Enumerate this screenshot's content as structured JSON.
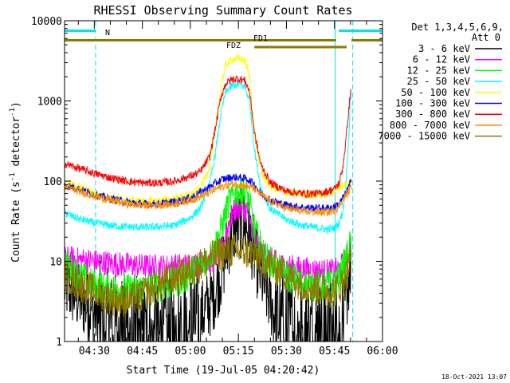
{
  "chart_data": {
    "type": "line",
    "title": "RHESSI Observing Summary Count Rates",
    "xlabel": "Start Time (19-Jul-05 04:20:42)",
    "ylabel_main": "Count Rate (s",
    "ylabel_exp1": "-1",
    "ylabel_mid": " detector",
    "ylabel_exp2": "-1",
    "ylabel_end": ")",
    "y_scale": "log",
    "ylim": [
      1,
      10000
    ],
    "xlim_minutes": [
      260.7,
      360.0
    ],
    "x_ticks": [
      {
        "label": "04:30",
        "minutes": 270
      },
      {
        "label": "04:45",
        "minutes": 285
      },
      {
        "label": "05:00",
        "minutes": 300
      },
      {
        "label": "05:15",
        "minutes": 315
      },
      {
        "label": "05:30",
        "minutes": 330
      },
      {
        "label": "05:45",
        "minutes": 345
      },
      {
        "label": "06:00",
        "minutes": 360
      }
    ],
    "y_ticks": [
      {
        "label": "1",
        "value": 1
      },
      {
        "label": "10",
        "value": 10
      },
      {
        "label": "100",
        "value": 100
      },
      {
        "label": "1000",
        "value": 1000
      },
      {
        "label": "10000",
        "value": 10000
      }
    ],
    "legend_header": [
      "Det 1,3,4,5,6,9,",
      "Att 0"
    ],
    "legend_placement": "right",
    "timestamp": "18-Oct-2021 13:07",
    "flags": [
      {
        "label": "N",
        "color": "#00e5e5",
        "segments": [
          [
            260.7,
            270.4
          ],
          [
            346.3,
            360.0
          ]
        ],
        "level": 7500
      },
      {
        "label": "FD1",
        "color": "#8c7a00",
        "segments": [
          [
            260.7,
            345.5
          ],
          [
            350.3,
            360.0
          ]
        ],
        "level": 5700
      },
      {
        "label": "FDZ",
        "color": "#8c7a00",
        "segments": [
          [
            320.0,
            348.8
          ]
        ],
        "level": 4700
      }
    ],
    "night_lines": [
      {
        "minutes": 260.7,
        "style": "solid",
        "color": "#00e5e5"
      },
      {
        "minutes": 270.4,
        "style": "dashed",
        "color": "#00e5e5"
      },
      {
        "minutes": 345.2,
        "style": "solid",
        "color": "#00e5e5"
      },
      {
        "minutes": 350.7,
        "style": "dashed",
        "color": "#00e5e5"
      }
    ],
    "series": [
      {
        "name": "3 - 6 keV",
        "color": "#000000",
        "x": [
          260.7,
          263,
          266,
          270,
          275,
          282,
          290,
          298,
          303,
          307,
          310,
          312,
          314,
          316,
          318,
          320,
          323,
          327,
          333,
          340,
          344,
          346,
          347.5,
          348.5,
          349.5,
          350.2
        ],
        "y": [
          5,
          4.2,
          3.2,
          2.3,
          1.5,
          1.3,
          1.2,
          1.3,
          2,
          3.5,
          8,
          18,
          27,
          30,
          26,
          12,
          5,
          2,
          1.3,
          1.3,
          1.2,
          1.1,
          1.5,
          3,
          6,
          10
        ]
      },
      {
        "name": "6 - 12 keV",
        "color": "#ff00ff",
        "x": [
          260.7,
          265,
          270,
          280,
          290,
          300,
          307,
          310,
          312,
          314,
          316,
          318,
          320,
          323,
          328,
          335,
          342,
          345,
          346.3,
          347.5,
          349,
          350.2
        ],
        "y": [
          11,
          10.5,
          10,
          9,
          8.5,
          9,
          10,
          15,
          30,
          45,
          47,
          42,
          20,
          12,
          9,
          8,
          7.5,
          7.5,
          8,
          9,
          12,
          16
        ]
      },
      {
        "name": "12 - 25 keV",
        "color": "#00ff00",
        "x": [
          260.7,
          263,
          266,
          270,
          275,
          280,
          286,
          292,
          298,
          303,
          307,
          310,
          312,
          314,
          316,
          318,
          320,
          323,
          327,
          332,
          337,
          342,
          345,
          346.3,
          347.5,
          349,
          350.2
        ],
        "y": [
          9.5,
          8,
          6.5,
          5,
          4.5,
          4.5,
          4.6,
          5,
          6,
          9,
          13,
          28,
          55,
          72,
          75,
          65,
          25,
          12,
          8,
          6,
          5,
          5,
          5.5,
          6,
          8,
          12,
          18
        ]
      },
      {
        "name": "25 - 50 keV",
        "color": "#00ffff",
        "x": [
          260.7,
          265,
          270,
          275,
          280,
          285,
          290,
          295,
          300,
          303,
          306,
          308,
          309.5,
          311,
          313,
          315,
          317,
          318.5,
          320,
          322,
          325,
          330,
          335,
          340,
          343,
          345,
          346.5,
          347.5,
          348.5,
          349.5,
          350.2
        ],
        "y": [
          40,
          34,
          30,
          28,
          27,
          26.5,
          27,
          28,
          35,
          45,
          90,
          250,
          700,
          1300,
          1550,
          1600,
          1500,
          1000,
          250,
          80,
          45,
          33,
          28,
          26,
          25,
          26,
          30,
          40,
          80,
          400,
          1400
        ]
      },
      {
        "name": "50 - 100 keV",
        "color": "#ffff00",
        "x": [
          260.7,
          265,
          270,
          275,
          280,
          285,
          290,
          295,
          300,
          303,
          306,
          308,
          309.5,
          311,
          313,
          315,
          317,
          318.5,
          320,
          322,
          325,
          330,
          335,
          340,
          343,
          345,
          346.3,
          347.5,
          348.5,
          349.5,
          350.2
        ],
        "y": [
          95,
          85,
          70,
          62,
          58,
          56,
          57,
          60,
          68,
          80,
          150,
          500,
          1500,
          2800,
          3300,
          3400,
          3200,
          2000,
          400,
          130,
          85,
          72,
          68,
          68,
          70,
          75,
          85,
          88,
          90,
          95,
          98
        ]
      },
      {
        "name": "100 - 300 keV",
        "color": "#0000ff",
        "x": [
          260.7,
          265,
          270,
          275,
          280,
          285,
          290,
          295,
          300,
          303,
          306,
          308,
          310,
          312,
          314,
          316,
          318,
          320,
          322,
          325,
          330,
          335,
          340,
          343,
          345,
          346.3,
          347.5,
          348.5,
          349.5,
          350.2
        ],
        "y": [
          90,
          80,
          68,
          60,
          55,
          52,
          52,
          55,
          62,
          72,
          85,
          95,
          105,
          110,
          112,
          110,
          105,
          92,
          70,
          58,
          50,
          47,
          46,
          46,
          48,
          52,
          60,
          70,
          85,
          100
        ]
      },
      {
        "name": "300 - 800 keV",
        "color": "#ff0000",
        "x": [
          260.7,
          265,
          270,
          275,
          280,
          285,
          290,
          295,
          300,
          303,
          306,
          308,
          309.5,
          311,
          313,
          315,
          317,
          318.5,
          320,
          322,
          325,
          330,
          335,
          340,
          343,
          345,
          346.5,
          347.5,
          348.5,
          349.5,
          350.2
        ],
        "y": [
          165,
          145,
          125,
          110,
          100,
          95,
          95,
          100,
          115,
          130,
          200,
          500,
          1100,
          1650,
          1850,
          1900,
          1800,
          1300,
          400,
          160,
          95,
          75,
          70,
          70,
          75,
          80,
          95,
          140,
          300,
          800,
          1500
        ]
      },
      {
        "name": "800 - 7000 keV",
        "color": "#ff8c00",
        "x": [
          260.7,
          265,
          270,
          275,
          280,
          285,
          290,
          295,
          300,
          303,
          306,
          308,
          310,
          312,
          314,
          316,
          318,
          320,
          322,
          325,
          330,
          335,
          340,
          343,
          345,
          346.3,
          347.5,
          348.5,
          349.5,
          350.2
        ],
        "y": [
          85,
          75,
          65,
          58,
          52,
          50,
          50,
          52,
          58,
          64,
          72,
          80,
          86,
          90,
          92,
          90,
          86,
          80,
          68,
          56,
          46,
          42,
          41,
          41,
          43,
          48,
          58,
          65,
          75,
          88
        ]
      },
      {
        "name": "7000 - 15000 keV",
        "color": "#8c7a00",
        "x": [
          260.7,
          263,
          266,
          270,
          274,
          278,
          282,
          286,
          290,
          294,
          298,
          302,
          306,
          309,
          312,
          315,
          318,
          321,
          324,
          328,
          332,
          336,
          340,
          343,
          345,
          346.3,
          347.5,
          349,
          350.2
        ],
        "y": [
          7,
          6,
          5,
          4.2,
          3.6,
          3.3,
          3.4,
          4,
          5,
          6,
          7,
          8.5,
          10.5,
          12.5,
          13.5,
          13.5,
          12.8,
          11.5,
          9.5,
          7.5,
          6,
          5,
          4.5,
          4.3,
          4.3,
          4.6,
          5.5,
          7.5,
          11
        ]
      }
    ]
  }
}
